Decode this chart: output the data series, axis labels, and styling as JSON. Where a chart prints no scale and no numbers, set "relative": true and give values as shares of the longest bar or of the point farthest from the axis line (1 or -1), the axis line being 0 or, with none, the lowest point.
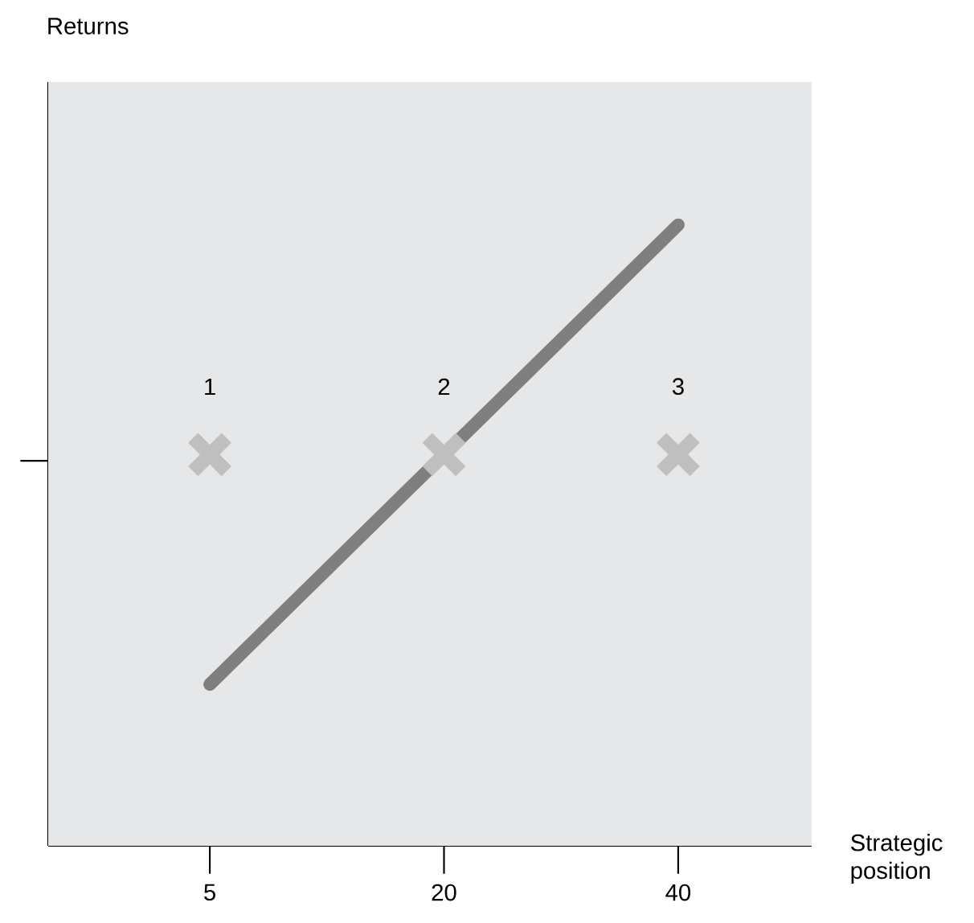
{
  "chart_data": {
    "type": "line",
    "relative": true,
    "xlabel": "Strategic position",
    "categories": [
      "5",
      "20",
      "40"
    ],
    "series": [
      {
        "values": [
          0.26,
          0.63,
          1
        ],
        "color": "#7f7f7f"
      },
      {
        "type": "scatter",
        "x": [
          "5",
          "20",
          "40"
        ],
        "values": [
          0.63,
          0.63,
          0.63
        ],
        "color": "#bfbfbf",
        "marker": "cross"
      }
    ],
    "annotations": [
      "Returns",
      {
        "text": "1",
        "x": "5",
        "y": 0.63
      },
      {
        "text": "2",
        "x": "20",
        "y": 0.63
      },
      {
        "text": "3",
        "x": "40",
        "y": 0.63
      }
    ]
  }
}
